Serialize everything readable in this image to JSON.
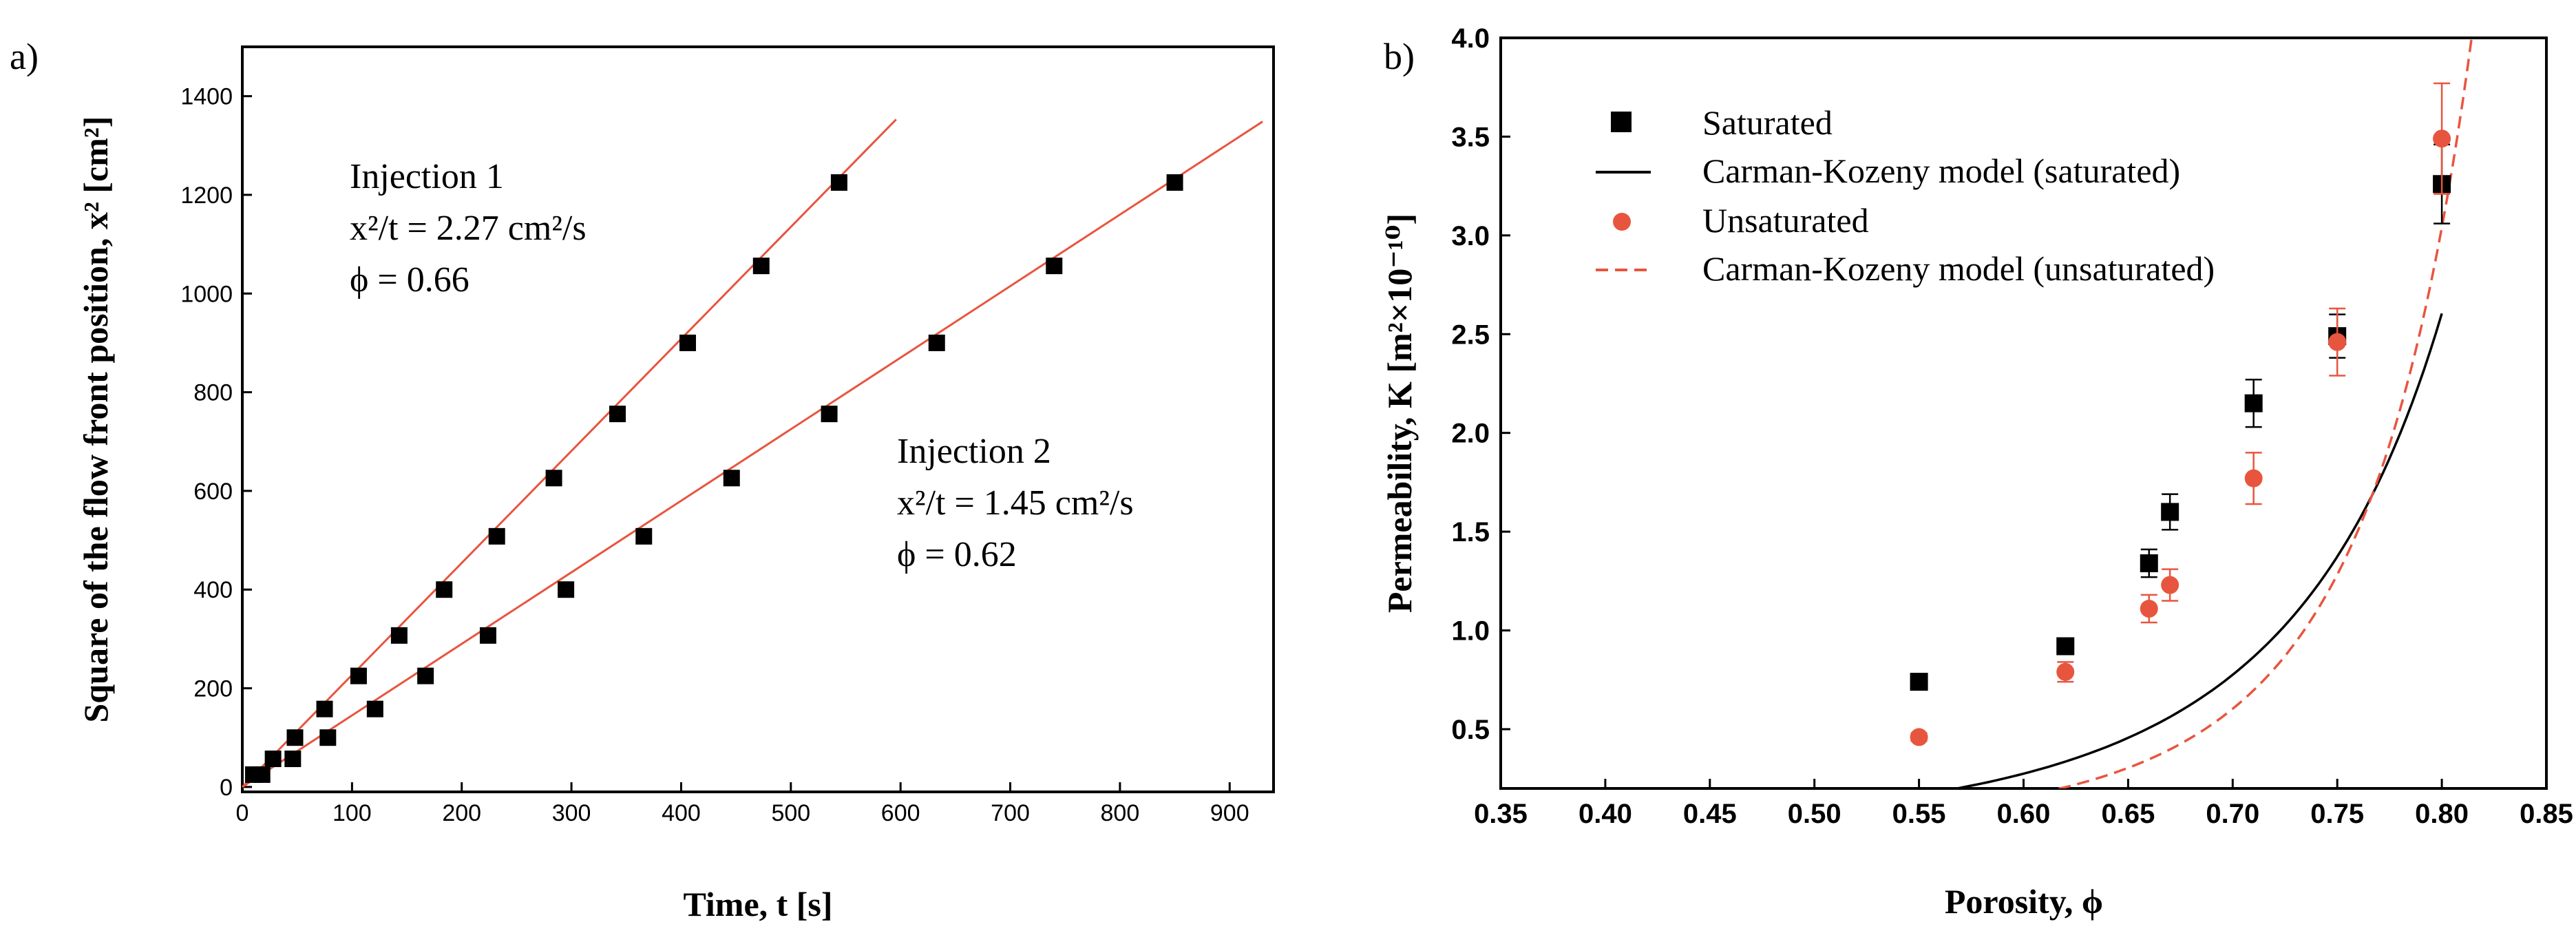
{
  "chart_data": [
    {
      "type": "scatter",
      "panel_label": "a)",
      "xlabel": "Time, t [s]",
      "ylabel": "Square of the flow front position, x² [cm²]",
      "xlim": [
        0,
        940
      ],
      "ylim": [
        -10,
        1500
      ],
      "xticks": [
        0,
        100,
        200,
        300,
        400,
        500,
        600,
        700,
        800,
        900
      ],
      "yticks": [
        0,
        200,
        400,
        600,
        800,
        1000,
        1200,
        1400
      ],
      "colors": {
        "points": "#000000",
        "fit": "#e8553f"
      },
      "series": [
        {
          "name": "Injection 1",
          "annotation_lines": [
            "Injection 1",
            "x²/t = 2.27 cm²/s",
            "ϕ = 0.66"
          ],
          "slope": 2.27,
          "fit_x_end": 596,
          "points": [
            [
              10,
              25
            ],
            [
              28,
              57
            ],
            [
              48,
              100
            ],
            [
              75,
              158
            ],
            [
              106,
              225
            ],
            [
              143,
              307
            ],
            [
              184,
              400
            ],
            [
              232,
              508
            ],
            [
              284,
              626
            ],
            [
              342,
              756
            ],
            [
              406,
              900
            ],
            [
              473,
              1056
            ],
            [
              544,
              1225
            ]
          ]
        },
        {
          "name": "Injection 2",
          "annotation_lines": [
            "Injection 2",
            "x²/t = 1.45 cm²/s",
            "ϕ = 0.62"
          ],
          "slope": 1.45,
          "fit_x_end": 930,
          "points": [
            [
              18,
              25
            ],
            [
              46,
              57
            ],
            [
              78,
              100
            ],
            [
              121,
              158
            ],
            [
              167,
              225
            ],
            [
              224,
              307
            ],
            [
              295,
              400
            ],
            [
              366,
              508
            ],
            [
              446,
              626
            ],
            [
              535,
              756
            ],
            [
              633,
              900
            ],
            [
              740,
              1056
            ],
            [
              850,
              1225
            ]
          ]
        }
      ]
    },
    {
      "type": "scatter",
      "panel_label": "b)",
      "xlabel": "Porosity, ϕ",
      "ylabel": "Permeability, K [m²×10⁻¹⁰]",
      "xlim": [
        0.35,
        0.85
      ],
      "ylim": [
        0.2,
        4.0
      ],
      "xticks": [
        "0.35",
        "0.40",
        "0.45",
        "0.50",
        "0.55",
        "0.60",
        "0.65",
        "0.70",
        "0.75",
        "0.80",
        "0.85"
      ],
      "yticks": [
        "0.5",
        "1.0",
        "1.5",
        "2.0",
        "2.5",
        "3.0",
        "3.5",
        "4.0"
      ],
      "legend_position": "top-left",
      "series": [
        {
          "name": "Saturated",
          "marker": "square",
          "color": "#000000",
          "points": [
            {
              "x": 0.55,
              "y": 0.74,
              "err": 0.0
            },
            {
              "x": 0.62,
              "y": 0.92,
              "err": 0.04
            },
            {
              "x": 0.66,
              "y": 1.34,
              "err": 0.07
            },
            {
              "x": 0.67,
              "y": 1.6,
              "err": 0.09
            },
            {
              "x": 0.71,
              "y": 2.15,
              "err": 0.12
            },
            {
              "x": 0.75,
              "y": 2.49,
              "err": 0.11
            },
            {
              "x": 0.8,
              "y": 3.26,
              "err": 0.2
            }
          ]
        },
        {
          "name": "Carman-Kozeny model (saturated)",
          "line": "solid",
          "color": "#000000",
          "model": "a*x^3/(1-x)^2",
          "coefficient": 0.2035,
          "x_range": [
            0.35,
            0.8
          ]
        },
        {
          "name": "Unsaturated",
          "marker": "circle",
          "color": "#e8553f",
          "points": [
            {
              "x": 0.55,
              "y": 0.46,
              "err": 0.02
            },
            {
              "x": 0.62,
              "y": 0.79,
              "err": 0.05
            },
            {
              "x": 0.66,
              "y": 1.11,
              "err": 0.07
            },
            {
              "x": 0.67,
              "y": 1.23,
              "err": 0.08
            },
            {
              "x": 0.71,
              "y": 1.77,
              "err": 0.13
            },
            {
              "x": 0.75,
              "y": 2.46,
              "err": 0.17
            },
            {
              "x": 0.8,
              "y": 3.49,
              "err": 0.28
            }
          ]
        },
        {
          "name": "Carman-Kozeny model (unsaturated)",
          "line": "dashed",
          "color": "#e8553f",
          "model": "a*x^b/(1-x)^c",
          "coefficient": 0.0475,
          "exponent_b": 3.0,
          "exponent_c": 3.0,
          "x_range": [
            0.415,
            0.815
          ]
        }
      ]
    }
  ]
}
